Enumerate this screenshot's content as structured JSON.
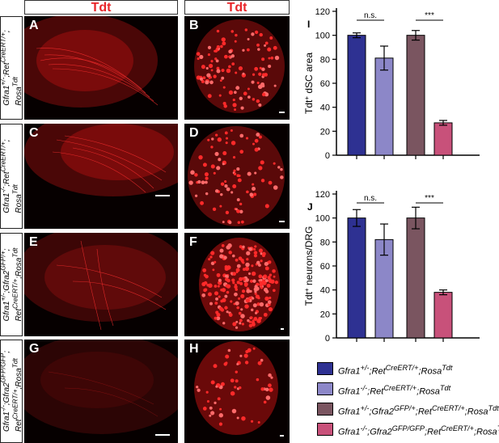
{
  "column_headers": [
    "Tdt",
    "Tdt"
  ],
  "rows": [
    {
      "genotype_html": "Gfra1<sup>+/-</sup>;Ret<sup>CreERT/+</sup>;<br>Rosa<sup>Tdt</sup>",
      "panels": [
        "A",
        "B"
      ]
    },
    {
      "genotype_html": "Gfra1<sup>-/-</sup>;Ret<sup>CreERT/+</sup>;<br>Rosa<sup>Tdt</sup>",
      "panels": [
        "C",
        "D"
      ]
    },
    {
      "genotype_html": "Gfra1<sup>+/-</sup>;Gfra2<sup>GFP/+</sup>;<br>Ret<sup>CreERT/+</sup>;Rosa<sup>Tdt</sup>",
      "panels": [
        "E",
        "F"
      ]
    },
    {
      "genotype_html": "Gfra1<sup>-/-</sup>;Gfra2<sup>GFP/GFP</sup>;<br>Ret<sup>CreERT/+</sup>;Rosa<sup>Tdt</sup>",
      "panels": [
        "G",
        "H"
      ]
    }
  ],
  "colors": {
    "stain_red": "#e8262a",
    "series": [
      "#2e3192",
      "#8c87c8",
      "#7a5560",
      "#c8517a"
    ]
  },
  "legend": [
    "Gfra1<sup>+/-</sup>;Ret<sup>CreERT/+</sup>;Rosa<sup>Tdt</sup>",
    "Gfra1<sup>-/-</sup>;Ret<sup>CreERT/+</sup>;Rosa<sup>Tdt</sup>",
    "Gfra1<sup>+/-</sup>;Gfra2<sup>GFP/+</sup>;Ret<sup>CreERT/+</sup>;Rosa<sup>Tdt</sup>",
    "Gfra1<sup>-/-</sup>;Gfra2<sup>GFP/GFP</sup>;Ret<sup>CreERT/+</sup>;Rosa<sup>Tdt</sup>"
  ],
  "chart_data": [
    {
      "type": "bar",
      "panel_letter": "I",
      "ylabel": "Tdt<tspan baseline-shift='super' font-size='8'>+</tspan> dSC area",
      "ylim": [
        0,
        120
      ],
      "yticks": [
        0,
        20,
        40,
        60,
        80,
        100,
        120
      ],
      "series": [
        {
          "value": 100,
          "error": 2
        },
        {
          "value": 81,
          "error": 10
        },
        {
          "value": 100,
          "error": 4
        },
        {
          "value": 27,
          "error": 2
        }
      ],
      "significance": [
        "n.s.",
        "***"
      ]
    },
    {
      "type": "bar",
      "panel_letter": "J",
      "ylabel": "Tdt<tspan baseline-shift='super' font-size='8'>+</tspan> neurons/DRG",
      "ylim": [
        0,
        120
      ],
      "yticks": [
        0,
        20,
        40,
        60,
        80,
        100,
        120
      ],
      "series": [
        {
          "value": 100,
          "error": 7
        },
        {
          "value": 82,
          "error": 13
        },
        {
          "value": 100,
          "error": 9
        },
        {
          "value": 38,
          "error": 2
        }
      ],
      "significance": [
        "n.s.",
        "***"
      ]
    }
  ]
}
